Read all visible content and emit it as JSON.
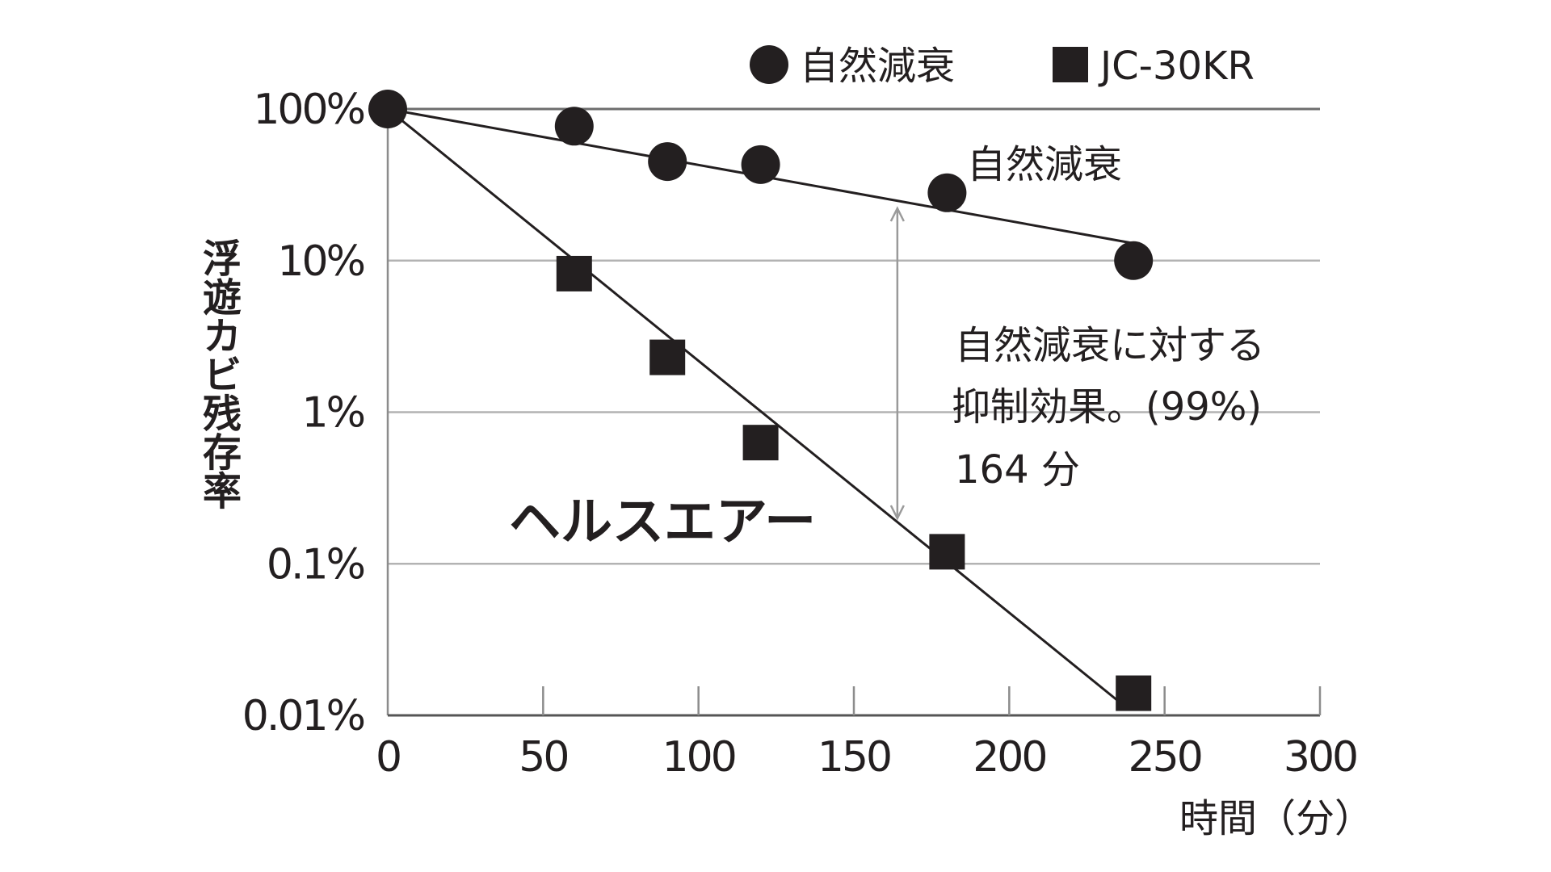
{
  "chart_data": {
    "type": "scatter",
    "title": "",
    "xlabel": "時間（分）",
    "ylabel": "浮遊カビ残存率",
    "xlim": [
      0,
      300
    ],
    "ylim": [
      0.01,
      100
    ],
    "yscale": "log",
    "y_unit": "%",
    "x_ticks": [
      "0",
      "50",
      "100",
      "150",
      "200",
      "250",
      "300"
    ],
    "x_tick_values": [
      0,
      50,
      100,
      150,
      200,
      250,
      300
    ],
    "y_ticks": [
      "100%",
      "10%",
      "1%",
      "0.1%",
      "0.01%"
    ],
    "y_tick_values": [
      100,
      10,
      1,
      0.1,
      0.01
    ],
    "grid": "horizontal",
    "legend_position": "top-right",
    "legend": [
      {
        "label": "自然減衰",
        "marker": "circle"
      },
      {
        "label": "JC-30KR",
        "marker": "square"
      }
    ],
    "series": [
      {
        "name": "自然減衰",
        "marker": "circle",
        "x": [
          0,
          60,
          90,
          120,
          180,
          240
        ],
        "y": [
          100,
          77,
          45,
          43,
          28,
          10
        ],
        "trendline": {
          "x": [
            0,
            240
          ],
          "y": [
            100,
            13
          ]
        }
      },
      {
        "name": "JC-30KR",
        "marker": "square",
        "x": [
          0,
          60,
          90,
          120,
          180,
          240
        ],
        "y": [
          100,
          8.2,
          2.3,
          0.63,
          0.12,
          0.014
        ],
        "trendline": {
          "x": [
            0,
            236
          ],
          "y": [
            100,
            0.012
          ]
        }
      }
    ],
    "annotations": {
      "natural_label": "自然減衰",
      "product_label": "ヘルスエアー",
      "effect_line1": "自然減衰に対する",
      "effect_line2": "抑制効果。(99%)",
      "effect_line3": "164 分",
      "effect_arrow_x": 164
    },
    "colors": {
      "marker": "#231f20",
      "grid": "#b3b3b3",
      "axis": "#8c8c8c",
      "arrow": "#9a9a9a"
    }
  }
}
